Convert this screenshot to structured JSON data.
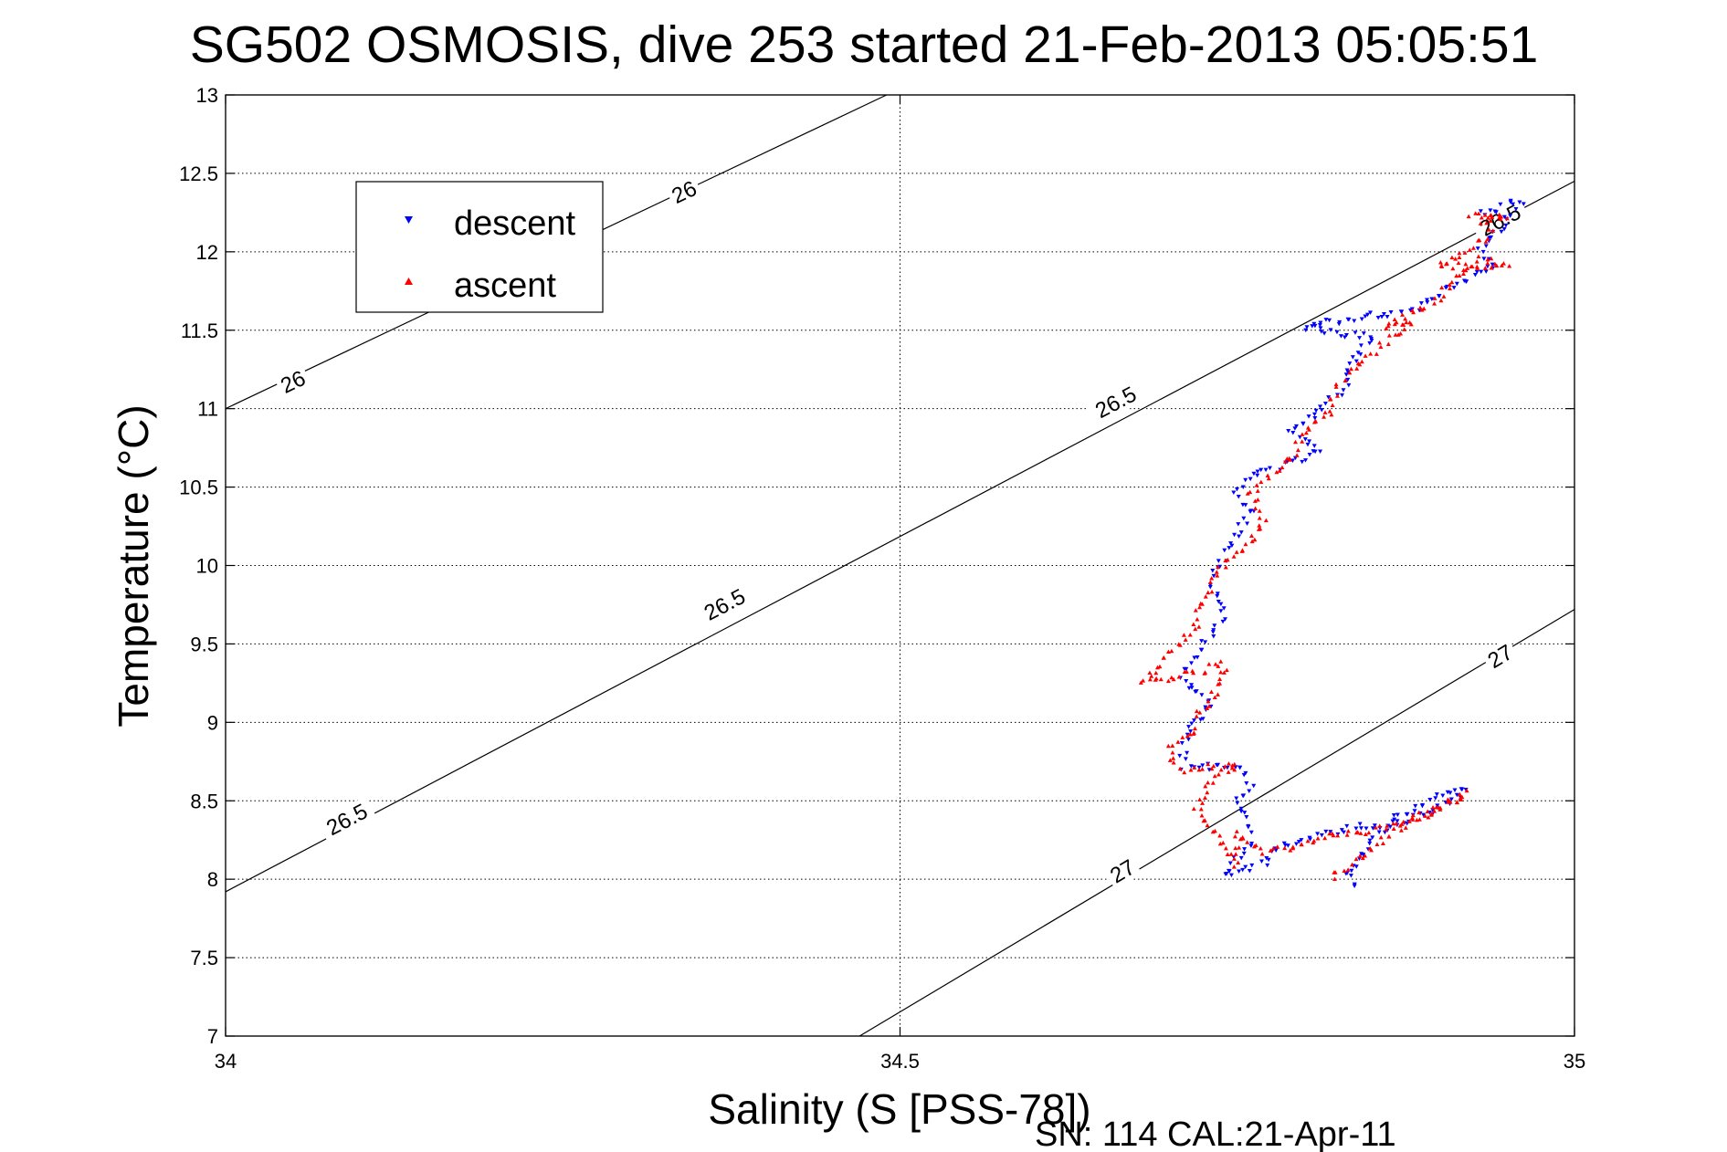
{
  "chart_data": {
    "type": "scatter",
    "title": "SG502 OSMOSIS, dive 253 started 21-Feb-2013 05:05:51",
    "xlabel": "Salinity (S [PSS-78])",
    "ylabel": "Temperature (°C)",
    "xlim": [
      34,
      35
    ],
    "ylim": [
      7,
      13
    ],
    "xticks": [
      "34",
      "34.5",
      "35"
    ],
    "yticks": [
      "7",
      "7.5",
      "8",
      "8.5",
      "9",
      "9.5",
      "10",
      "10.5",
      "11",
      "11.5",
      "12",
      "12.5",
      "13"
    ],
    "grid": true,
    "legend_position": "top-left",
    "footer": "SN: 114  CAL:21-Apr-11",
    "colors": {
      "descent": "#0000ff",
      "ascent": "#ff0000",
      "contour": "#000000"
    },
    "contours": [
      {
        "level": "26",
        "points": [
          [
            34.0,
            11.0
          ],
          [
            34.49,
            13.0
          ]
        ]
      },
      {
        "level": "26.5",
        "points": [
          [
            34.0,
            7.92
          ],
          [
            35.0,
            12.45
          ]
        ]
      },
      {
        "level": "27",
        "points": [
          [
            34.47,
            7.0
          ],
          [
            35.0,
            9.72
          ]
        ]
      }
    ],
    "contour_labels": [
      {
        "text": "26",
        "x": 34.05,
        "y": 11.17
      },
      {
        "text": "26",
        "x": 34.34,
        "y": 12.38
      },
      {
        "text": "26.5",
        "x": 34.09,
        "y": 8.38
      },
      {
        "text": "26.5",
        "x": 34.37,
        "y": 9.75
      },
      {
        "text": "26.5",
        "x": 34.66,
        "y": 11.04
      },
      {
        "text": "26.5",
        "x": 34.945,
        "y": 12.2
      },
      {
        "text": "27",
        "x": 34.665,
        "y": 8.05
      },
      {
        "text": "27",
        "x": 34.945,
        "y": 9.42
      }
    ],
    "series": [
      {
        "name": "descent",
        "marker": "triangle-down",
        "color": "#0000ff",
        "path": [
          [
            34.93,
            12.25
          ],
          [
            34.96,
            12.32
          ],
          [
            34.95,
            12.2
          ],
          [
            34.94,
            12.1
          ],
          [
            34.93,
            12.02
          ],
          [
            34.94,
            11.9
          ],
          [
            34.91,
            11.78
          ],
          [
            34.88,
            11.62
          ],
          [
            34.85,
            11.6
          ],
          [
            34.8,
            11.52
          ],
          [
            34.85,
            11.45
          ],
          [
            34.84,
            11.35
          ],
          [
            34.83,
            11.2
          ],
          [
            34.83,
            11.1
          ],
          [
            34.82,
            11.05
          ],
          [
            34.81,
            10.98
          ],
          [
            34.8,
            10.92
          ],
          [
            34.79,
            10.85
          ],
          [
            34.81,
            10.75
          ],
          [
            34.79,
            10.65
          ],
          [
            34.76,
            10.58
          ],
          [
            34.75,
            10.45
          ],
          [
            34.76,
            10.35
          ],
          [
            34.75,
            10.2
          ],
          [
            34.74,
            10.05
          ],
          [
            34.73,
            9.9
          ],
          [
            34.74,
            9.7
          ],
          [
            34.73,
            9.55
          ],
          [
            34.72,
            9.42
          ],
          [
            34.71,
            9.3
          ],
          [
            34.72,
            9.2
          ],
          [
            34.73,
            9.1
          ],
          [
            34.72,
            9.0
          ],
          [
            34.71,
            8.85
          ],
          [
            34.71,
            8.72
          ],
          [
            34.73,
            8.72
          ],
          [
            34.75,
            8.72
          ],
          [
            34.76,
            8.6
          ],
          [
            34.75,
            8.48
          ],
          [
            34.76,
            8.35
          ],
          [
            34.76,
            8.25
          ],
          [
            34.75,
            8.12
          ],
          [
            34.74,
            8.03
          ],
          [
            34.77,
            8.1
          ],
          [
            34.78,
            8.2
          ],
          [
            34.8,
            8.25
          ],
          [
            34.83,
            8.32
          ],
          [
            34.86,
            8.35
          ],
          [
            34.88,
            8.45
          ],
          [
            34.9,
            8.52
          ],
          [
            34.92,
            8.58
          ],
          [
            34.9,
            8.45
          ],
          [
            34.87,
            8.35
          ],
          [
            34.85,
            8.25
          ],
          [
            34.84,
            8.12
          ],
          [
            34.83,
            8.02
          ],
          [
            34.84,
            7.95
          ]
        ]
      },
      {
        "name": "ascent",
        "marker": "triangle-up",
        "color": "#ff0000",
        "path": [
          [
            34.82,
            8.0
          ],
          [
            34.83,
            8.08
          ],
          [
            34.85,
            8.2
          ],
          [
            34.87,
            8.32
          ],
          [
            34.9,
            8.45
          ],
          [
            34.92,
            8.55
          ],
          [
            34.89,
            8.42
          ],
          [
            34.86,
            8.32
          ],
          [
            34.84,
            8.3
          ],
          [
            34.82,
            8.3
          ],
          [
            34.8,
            8.22
          ],
          [
            34.77,
            8.18
          ],
          [
            34.75,
            8.3
          ],
          [
            34.75,
            8.1
          ],
          [
            34.73,
            8.35
          ],
          [
            34.72,
            8.45
          ],
          [
            34.73,
            8.6
          ],
          [
            34.75,
            8.72
          ],
          [
            34.73,
            8.72
          ],
          [
            34.71,
            8.7
          ],
          [
            34.7,
            8.78
          ],
          [
            34.7,
            8.85
          ],
          [
            34.72,
            8.95
          ],
          [
            34.72,
            9.05
          ],
          [
            34.73,
            9.12
          ],
          [
            34.74,
            9.3
          ],
          [
            34.74,
            9.38
          ],
          [
            34.72,
            9.32
          ],
          [
            34.7,
            9.28
          ],
          [
            34.68,
            9.25
          ],
          [
            34.69,
            9.32
          ],
          [
            34.7,
            9.45
          ],
          [
            34.72,
            9.6
          ],
          [
            34.72,
            9.7
          ],
          [
            34.73,
            9.85
          ],
          [
            34.74,
            10.0
          ],
          [
            34.76,
            10.15
          ],
          [
            34.77,
            10.3
          ],
          [
            34.76,
            10.45
          ],
          [
            34.77,
            10.55
          ],
          [
            34.78,
            10.6
          ],
          [
            34.79,
            10.7
          ],
          [
            34.8,
            10.85
          ],
          [
            34.82,
            11.0
          ],
          [
            34.82,
            11.08
          ],
          [
            34.83,
            11.2
          ],
          [
            34.85,
            11.35
          ],
          [
            34.87,
            11.5
          ],
          [
            34.88,
            11.55
          ],
          [
            34.86,
            11.52
          ],
          [
            34.9,
            11.7
          ],
          [
            34.91,
            11.85
          ],
          [
            34.93,
            11.95
          ],
          [
            34.95,
            11.92
          ],
          [
            34.92,
            11.9
          ],
          [
            34.9,
            11.92
          ],
          [
            34.92,
            12.0
          ],
          [
            34.94,
            12.12
          ],
          [
            34.93,
            12.2
          ],
          [
            34.95,
            12.22
          ],
          [
            34.92,
            12.25
          ]
        ]
      }
    ]
  }
}
